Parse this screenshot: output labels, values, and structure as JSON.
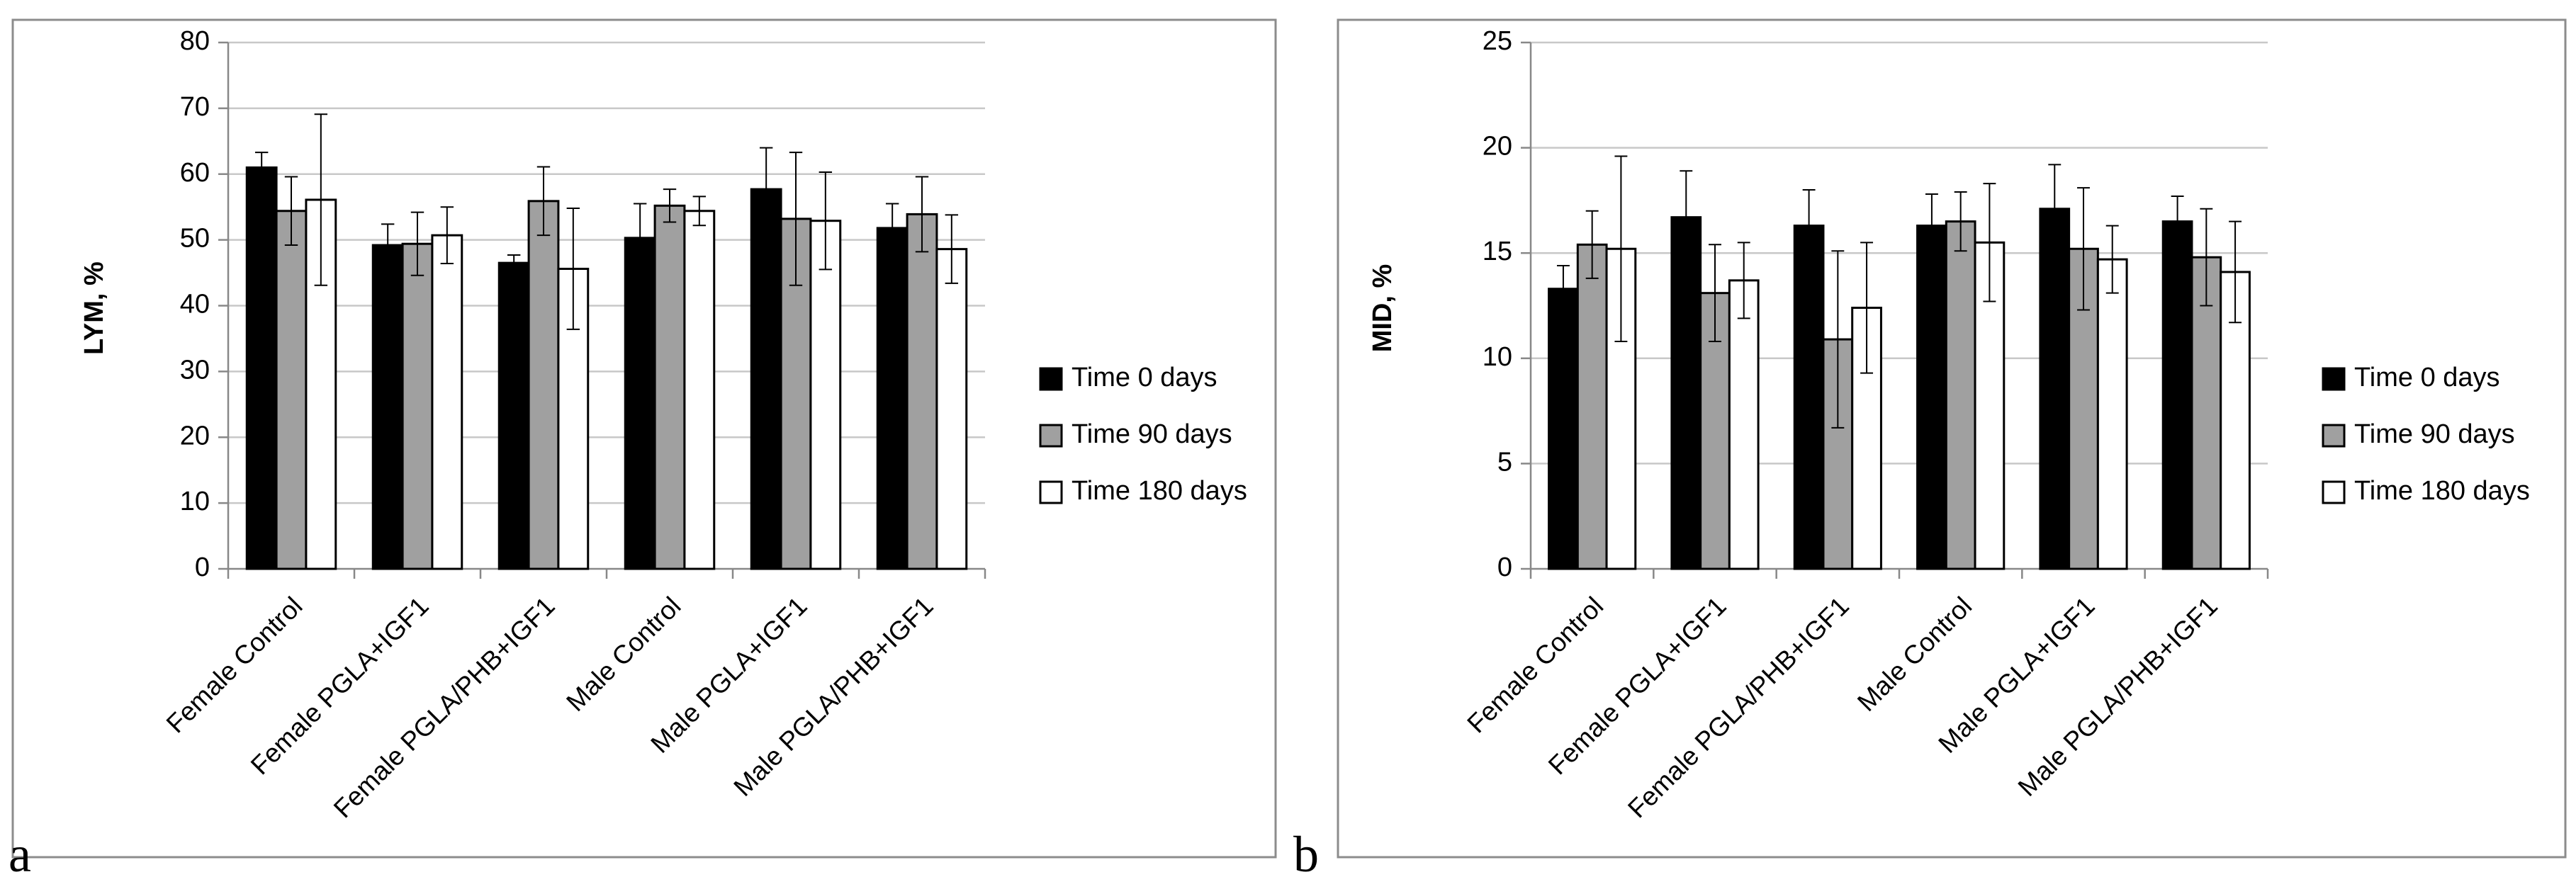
{
  "panels": {
    "a": {
      "letter": "a"
    },
    "b": {
      "letter": "b"
    }
  },
  "chart_data": [
    {
      "type": "bar",
      "panel": "a",
      "title": "",
      "ylabel": "LYM, %",
      "ylim": [
        0,
        80
      ],
      "yticks": [
        0,
        10,
        20,
        30,
        40,
        50,
        60,
        70,
        80
      ],
      "categories": [
        "Female Control",
        "Female PGLA+IGF1",
        "Female PGLA/PHB+IGF1",
        "Male Control",
        "Male PGLA+IGF1",
        "Male PGLA/PHB+IGF1"
      ],
      "series": [
        {
          "name": "Time 0 days",
          "color": "#000000",
          "values": [
            61,
            49.2,
            46.5,
            50.3,
            57.7,
            51.8
          ],
          "errors": [
            2.3,
            3.2,
            1.2,
            5.2,
            6.3,
            3.7
          ]
        },
        {
          "name": "Time 90 days",
          "color": "#a0a0a0",
          "values": [
            54.4,
            49.4,
            55.9,
            55.2,
            53.2,
            53.9
          ],
          "errors": [
            5.2,
            4.8,
            5.2,
            2.5,
            10.1,
            5.7
          ]
        },
        {
          "name": "Time 180 days",
          "color": "#ffffff",
          "values": [
            56.1,
            50.7,
            45.6,
            54.4,
            52.9,
            48.6
          ],
          "errors": [
            13.0,
            4.3,
            9.2,
            2.2,
            7.4,
            5.2
          ]
        }
      ],
      "legend": "right"
    },
    {
      "type": "bar",
      "panel": "b",
      "title": "",
      "ylabel": "MID, %",
      "ylim": [
        0,
        25
      ],
      "yticks": [
        0,
        5,
        10,
        15,
        20,
        25
      ],
      "categories": [
        "Female Control",
        "Female PGLA+IGF1",
        "Female PGLA/PHB+IGF1",
        "Male Control",
        "Male PGLA+IGF1",
        "Male PGLA/PHB+IGF1"
      ],
      "series": [
        {
          "name": "Time 0 days",
          "color": "#000000",
          "values": [
            13.3,
            16.7,
            16.3,
            16.3,
            17.1,
            16.5
          ],
          "errors": [
            1.1,
            2.2,
            1.7,
            1.5,
            2.1,
            1.2
          ]
        },
        {
          "name": "Time 90 days",
          "color": "#a0a0a0",
          "values": [
            15.4,
            13.1,
            10.9,
            16.5,
            15.2,
            14.8
          ],
          "errors": [
            1.6,
            2.3,
            4.2,
            1.4,
            2.9,
            2.3
          ]
        },
        {
          "name": "Time 180 days",
          "color": "#ffffff",
          "values": [
            15.2,
            13.7,
            12.4,
            15.5,
            14.7,
            14.1
          ],
          "errors": [
            4.4,
            1.8,
            3.1,
            2.8,
            1.6,
            2.4
          ]
        }
      ],
      "legend": "right"
    }
  ]
}
